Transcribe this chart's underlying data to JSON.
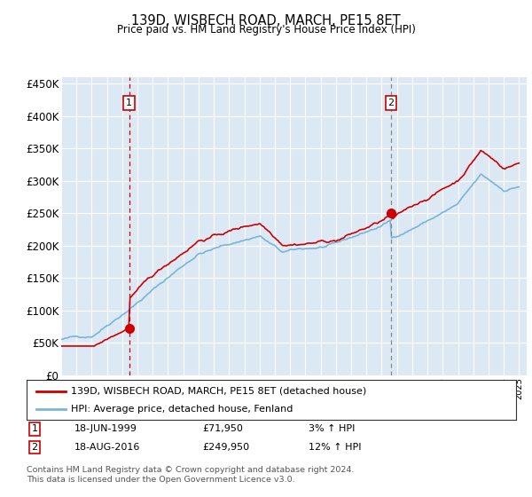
{
  "title": "139D, WISBECH ROAD, MARCH, PE15 8ET",
  "subtitle": "Price paid vs. HM Land Registry's House Price Index (HPI)",
  "ylabel_ticks": [
    "£0",
    "£50K",
    "£100K",
    "£150K",
    "£200K",
    "£250K",
    "£300K",
    "£350K",
    "£400K",
    "£450K"
  ],
  "ytick_values": [
    0,
    50000,
    100000,
    150000,
    200000,
    250000,
    300000,
    350000,
    400000,
    450000
  ],
  "ylim": [
    0,
    460000
  ],
  "xlim_start": 1995.0,
  "xlim_end": 2025.5,
  "hpi_color": "#7ab4d8",
  "price_color": "#cc0000",
  "marker1_x": 1999.46,
  "marker1_y": 71950,
  "marker2_x": 2016.62,
  "marker2_y": 249950,
  "legend_line1": "139D, WISBECH ROAD, MARCH, PE15 8ET (detached house)",
  "legend_line2": "HPI: Average price, detached house, Fenland",
  "annotation1_date": "18-JUN-1999",
  "annotation1_price": "£71,950",
  "annotation1_hpi": "3% ↑ HPI",
  "annotation2_date": "18-AUG-2016",
  "annotation2_price": "£249,950",
  "annotation2_hpi": "12% ↑ HPI",
  "footer": "Contains HM Land Registry data © Crown copyright and database right 2024.\nThis data is licensed under the Open Government Licence v3.0.",
  "background_color": "#dce9f5",
  "grid_color": "#ffffff"
}
